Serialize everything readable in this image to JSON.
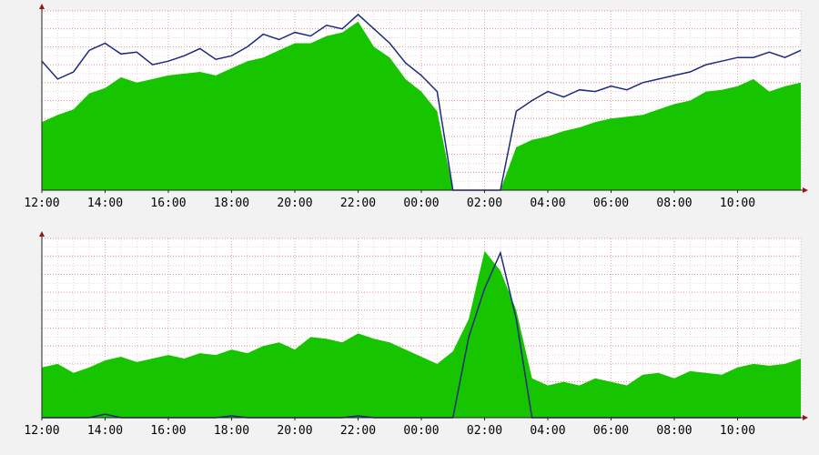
{
  "colors": {
    "background": "#f2f2f2",
    "plot_background": "#ffffff",
    "grid_minor": "#e5b8b8",
    "grid_major": "#e07070",
    "area_fill": "#17c400",
    "line": "#1c2a80",
    "axis": "#222222",
    "arrow": "#8b1a1a"
  },
  "chart_data": [
    {
      "type": "area",
      "title": "",
      "xlabel": "",
      "ylabel": "",
      "grid": true,
      "x_ticks": [
        "12:00",
        "14:00",
        "16:00",
        "18:00",
        "20:00",
        "22:00",
        "00:00",
        "02:00",
        "04:00",
        "06:00",
        "08:00",
        "10:00"
      ],
      "x_range_hours": [
        0,
        24
      ],
      "ylim": [
        0,
        100
      ],
      "x_hours": [
        0,
        0.5,
        1,
        1.5,
        2,
        2.5,
        3,
        3.5,
        4,
        4.5,
        5,
        5.5,
        6,
        6.5,
        7,
        7.5,
        8,
        8.5,
        9,
        9.5,
        10,
        10.5,
        11,
        11.5,
        12,
        12.5,
        13,
        13.5,
        14,
        14.5,
        15,
        15.5,
        16,
        16.5,
        17,
        17.5,
        18,
        18.5,
        19,
        19.5,
        20,
        20.5,
        21,
        21.5,
        22,
        22.5,
        23,
        23.5,
        24
      ],
      "series": [
        {
          "kind": "area",
          "values": [
            38,
            42,
            45,
            54,
            57,
            63,
            60,
            62,
            64,
            65,
            66,
            64,
            68,
            72,
            74,
            78,
            82,
            82,
            86,
            88,
            94,
            80,
            74,
            62,
            55,
            44,
            0,
            0,
            0,
            0,
            24,
            28,
            30,
            33,
            35,
            38,
            40,
            41,
            42,
            45,
            48,
            50,
            55,
            56,
            58,
            62,
            55,
            58,
            60
          ]
        },
        {
          "kind": "line",
          "values": [
            72,
            62,
            66,
            78,
            82,
            76,
            77,
            70,
            72,
            75,
            79,
            73,
            75,
            80,
            87,
            84,
            88,
            86,
            92,
            90,
            98,
            90,
            82,
            71,
            64,
            55,
            0,
            0,
            0,
            0,
            44,
            50,
            55,
            52,
            56,
            55,
            58,
            56,
            60,
            62,
            64,
            66,
            70,
            72,
            74,
            74,
            77,
            74,
            78
          ]
        }
      ]
    },
    {
      "type": "area",
      "title": "",
      "xlabel": "",
      "ylabel": "",
      "grid": true,
      "x_ticks": [
        "12:00",
        "14:00",
        "16:00",
        "18:00",
        "20:00",
        "22:00",
        "00:00",
        "02:00",
        "04:00",
        "06:00",
        "08:00",
        "10:00"
      ],
      "x_range_hours": [
        0,
        24
      ],
      "ylim": [
        0,
        100
      ],
      "x_hours": [
        0,
        0.5,
        1,
        1.5,
        2,
        2.5,
        3,
        3.5,
        4,
        4.5,
        5,
        5.5,
        6,
        6.5,
        7,
        7.5,
        8,
        8.5,
        9,
        9.5,
        10,
        10.5,
        11,
        11.5,
        12,
        12.5,
        13,
        13.5,
        14,
        14.5,
        15,
        15.5,
        16,
        16.5,
        17,
        17.5,
        18,
        18.5,
        19,
        19.5,
        20,
        20.5,
        21,
        21.5,
        22,
        22.5,
        23,
        23.5,
        24
      ],
      "series": [
        {
          "kind": "area",
          "values": [
            28,
            30,
            25,
            28,
            32,
            34,
            31,
            33,
            35,
            33,
            36,
            35,
            38,
            36,
            40,
            42,
            38,
            45,
            44,
            42,
            47,
            44,
            42,
            38,
            34,
            30,
            37,
            55,
            93,
            82,
            60,
            22,
            18,
            20,
            18,
            22,
            20,
            18,
            24,
            25,
            22,
            26,
            25,
            24,
            28,
            30,
            29,
            30,
            33
          ]
        },
        {
          "kind": "line",
          "values": [
            0,
            0,
            0,
            0,
            2,
            0,
            0,
            0,
            0,
            0,
            0,
            0,
            1,
            0,
            0,
            0,
            0,
            0,
            0,
            0,
            1,
            0,
            0,
            0,
            0,
            0,
            0,
            45,
            72,
            92,
            55,
            0,
            0,
            0,
            0,
            0,
            0,
            0,
            0,
            0,
            0,
            0,
            0,
            0,
            0,
            0,
            0,
            0,
            0
          ]
        }
      ]
    }
  ]
}
